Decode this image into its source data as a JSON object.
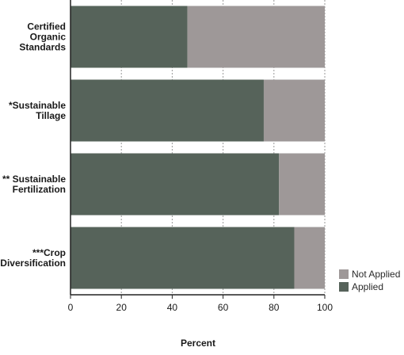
{
  "chart_data": {
    "type": "bar",
    "orientation": "horizontal",
    "stacked": true,
    "categories": [
      [
        "Certified",
        "Organic",
        "Standards"
      ],
      [
        "*Sustainable",
        "Tillage"
      ],
      [
        "** Sustainable",
        "Fertilization"
      ],
      [
        "***Crop",
        "Diversification"
      ]
    ],
    "series": [
      {
        "name": "Applied",
        "values": [
          46,
          76,
          82,
          88
        ],
        "color": "#56635a"
      },
      {
        "name": "Not Applied",
        "values": [
          54,
          24,
          18,
          12
        ],
        "color": "#9e9898"
      }
    ],
    "xlabel": "Percent",
    "xlim": [
      0,
      100
    ],
    "xticks": [
      0,
      20,
      40,
      60,
      80,
      100
    ],
    "grid": "vertical dashed",
    "legend": {
      "placement": "bottom-right",
      "order": [
        "Not Applied",
        "Applied"
      ]
    }
  }
}
